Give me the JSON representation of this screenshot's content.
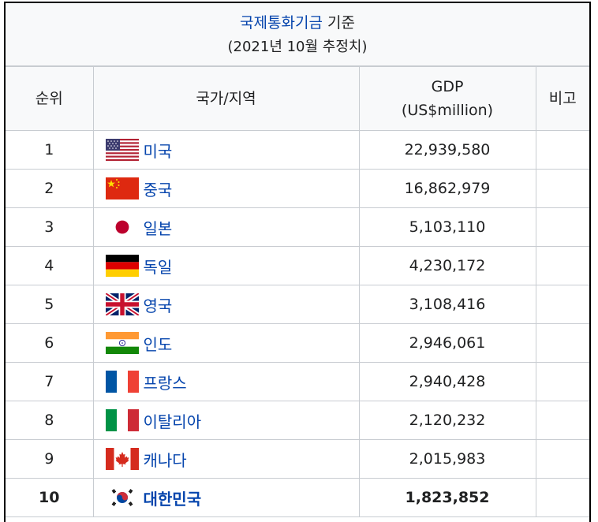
{
  "caption": {
    "link": "국제통화기금",
    "suffix": " 기준",
    "sub": "(2021년 10월 추정치)"
  },
  "headers": {
    "rank": "순위",
    "country": "국가/지역",
    "gdp_line1": "GDP",
    "gdp_line2": "(US$million)",
    "note": "비고"
  },
  "rows": [
    {
      "rank": "1",
      "country": "미국",
      "gdp": "22,939,580",
      "flag": "usa-flag-icon"
    },
    {
      "rank": "2",
      "country": "중국",
      "gdp": "16,862,979",
      "flag": "china-flag-icon"
    },
    {
      "rank": "3",
      "country": "일본",
      "gdp": "5,103,110",
      "flag": "japan-flag-icon"
    },
    {
      "rank": "4",
      "country": "독일",
      "gdp": "4,230,172",
      "flag": "germany-flag-icon"
    },
    {
      "rank": "5",
      "country": "영국",
      "gdp": "3,108,416",
      "flag": "uk-flag-icon"
    },
    {
      "rank": "6",
      "country": "인도",
      "gdp": "2,946,061",
      "flag": "india-flag-icon"
    },
    {
      "rank": "7",
      "country": "프랑스",
      "gdp": "2,940,428",
      "flag": "france-flag-icon"
    },
    {
      "rank": "8",
      "country": "이탈리아",
      "gdp": "2,120,232",
      "flag": "italy-flag-icon"
    },
    {
      "rank": "9",
      "country": "캐나다",
      "gdp": "2,015,983",
      "flag": "canada-flag-icon"
    },
    {
      "rank": "10",
      "country": "대한민국",
      "gdp": "1,823,852",
      "flag": "south-korea-flag-icon",
      "bold": true
    }
  ],
  "colors": {
    "link": "#0645ad",
    "header_bg": "#f8f9fa",
    "border": "#c8ccd1"
  }
}
